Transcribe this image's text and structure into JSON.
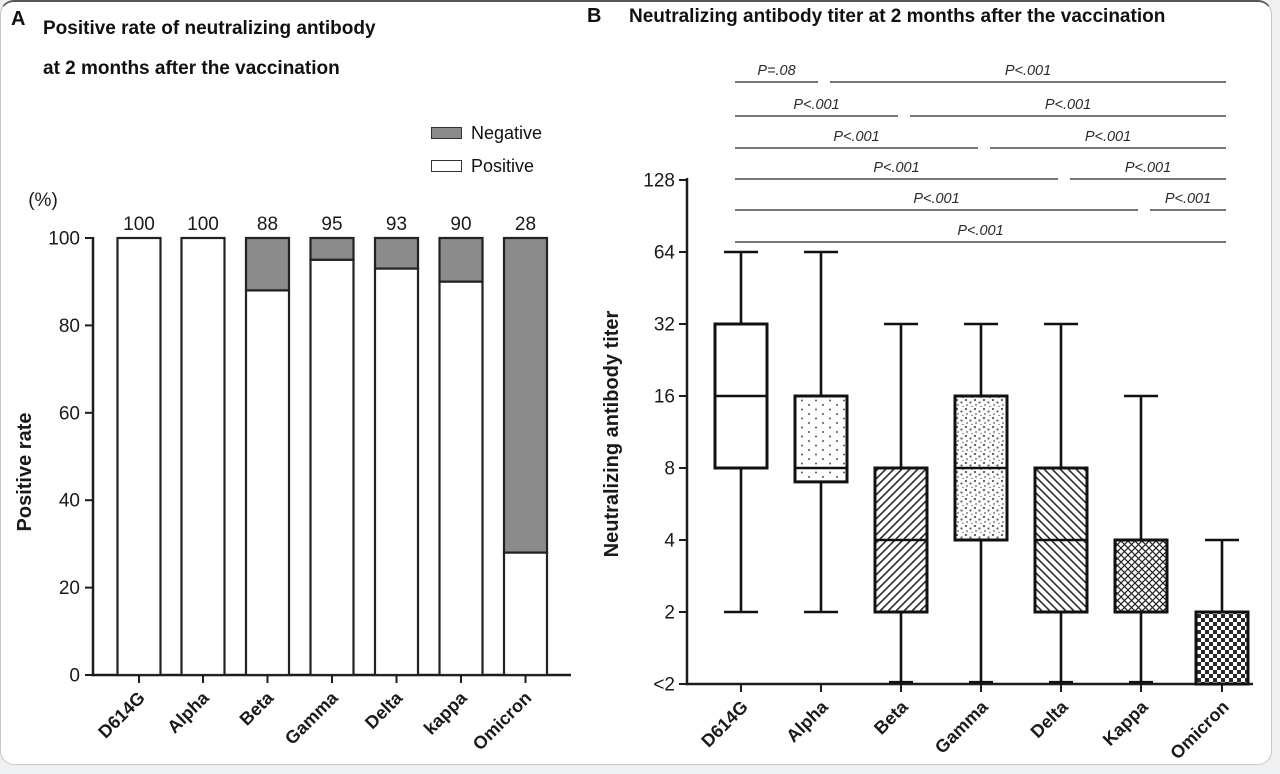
{
  "page": {
    "background": "#eef0f2",
    "card_background": "#ffffff"
  },
  "panel_a": {
    "letter": "A",
    "title_line1": "Positive rate of neutralizing antibody",
    "title_line2": "at 2 months after the vaccination",
    "y_unit_label": "(%)",
    "y_axis_title": "Positive rate",
    "legend": [
      {
        "label": "Negative",
        "swatch": "gray"
      },
      {
        "label": "Positive",
        "swatch": "white"
      }
    ]
  },
  "panel_b": {
    "letter": "B",
    "title": "Neutralizing antibody titer at 2 months after the vaccination",
    "y_axis_title": "Neutralizing antibody titer"
  },
  "colors": {
    "negative_gray": "#8b8b8b",
    "positive_white": "#ffffff",
    "axis_black": "#1c1c1c",
    "box_stroke": "#111111",
    "bracket_gray": "#4a4a4a",
    "text_dark": "#1a1a1a"
  },
  "chart_data": [
    {
      "type": "bar",
      "panel": "A",
      "title": "Positive rate of neutralizing antibody at 2 months after the vaccination",
      "stacked": true,
      "categories": [
        "D614G",
        "Alpha",
        "Beta",
        "Gamma",
        "Delta",
        "kappa",
        "Omicron"
      ],
      "series": [
        {
          "name": "Positive",
          "values": [
            100,
            100,
            88,
            95,
            93,
            90,
            28
          ]
        },
        {
          "name": "Negative",
          "values": [
            0,
            0,
            12,
            5,
            7,
            10,
            72
          ]
        }
      ],
      "bar_labels": [
        "100",
        "100",
        "88",
        "95",
        "93",
        "90",
        "28"
      ],
      "xlabel": "",
      "ylabel": "Positive rate",
      "y_unit": "(%)",
      "ylim": [
        0,
        100
      ],
      "yticks": [
        0,
        20,
        40,
        60,
        80,
        100
      ],
      "grid": false,
      "legend_position": "top-right"
    },
    {
      "type": "box",
      "panel": "B",
      "title": "Neutralizing antibody titer at 2 months after the vaccination",
      "categories": [
        "D614G",
        "Alpha",
        "Beta",
        "Gamma",
        "Delta",
        "Kappa",
        "Omicron"
      ],
      "xlabel": "",
      "ylabel": "Neutralizing antibody titer",
      "scale": "log2",
      "yticks": [
        "128",
        "64",
        "32",
        "16",
        "8",
        "4",
        "2",
        "<2"
      ],
      "grid": false,
      "boxes": [
        {
          "variant": "D614G",
          "min": 2,
          "q1": 8,
          "median": 16,
          "q3": 32,
          "max": 64,
          "pattern": "solid-white"
        },
        {
          "variant": "Alpha",
          "min": 2,
          "q1": 7,
          "median": 8,
          "q3": 16,
          "max": 64,
          "pattern": "dots-sparse"
        },
        {
          "variant": "Beta",
          "min": "<2",
          "q1": 2,
          "median": 4,
          "q3": 8,
          "max": 32,
          "pattern": "hatch-forward"
        },
        {
          "variant": "Gamma",
          "min": "<2",
          "q1": 4,
          "median": 8,
          "q3": 16,
          "max": 32,
          "pattern": "dots-dense"
        },
        {
          "variant": "Delta",
          "min": "<2",
          "q1": 2,
          "median": 4,
          "q3": 8,
          "max": 32,
          "pattern": "hatch-backward"
        },
        {
          "variant": "Kappa",
          "min": "<2",
          "q1": 2,
          "median": 4,
          "q3": 4,
          "max": 16,
          "pattern": "crosshatch-diagonal"
        },
        {
          "variant": "Omicron",
          "min": "<2",
          "q1": "<2",
          "median": "<2",
          "q3": 2,
          "max": 4,
          "pattern": "checkerboard"
        }
      ],
      "comparisons": [
        {
          "group1": "D614G",
          "group2": "Alpha",
          "p": "P=.08",
          "row": 1
        },
        {
          "group1": "Alpha",
          "group2": "Omicron",
          "p": "P<.001",
          "row": 1
        },
        {
          "group1": "D614G",
          "group2": "Beta",
          "p": "P<.001",
          "row": 2
        },
        {
          "group1": "Beta",
          "group2": "Omicron",
          "p": "P<.001",
          "row": 2
        },
        {
          "group1": "D614G",
          "group2": "Gamma",
          "p": "P<.001",
          "row": 3
        },
        {
          "group1": "Gamma",
          "group2": "Omicron",
          "p": "P<.001",
          "row": 3
        },
        {
          "group1": "D614G",
          "group2": "Delta",
          "p": "P<.001",
          "row": 4
        },
        {
          "group1": "Delta",
          "group2": "Omicron",
          "p": "P<.001",
          "row": 4
        },
        {
          "group1": "D614G",
          "group2": "Kappa",
          "p": "P<.001",
          "row": 5
        },
        {
          "group1": "Kappa",
          "group2": "Omicron",
          "p": "P<.001",
          "row": 5
        },
        {
          "group1": "D614G",
          "group2": "Omicron",
          "p": "P<.001",
          "row": 6
        }
      ]
    }
  ]
}
